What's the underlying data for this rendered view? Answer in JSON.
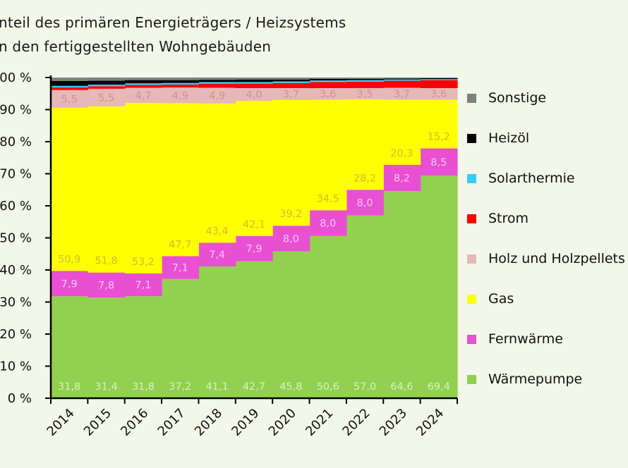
{
  "chart_data": {
    "type": "bar",
    "stacked": true,
    "title_lines": [
      "nteil des primären Energieträgers  / Heizsystems",
      "n den fertiggestellten  Wohngebäuden"
    ],
    "categories": [
      "2014",
      "2015",
      "2016",
      "2017",
      "2018",
      "2019",
      "2020",
      "2021",
      "2022",
      "2023",
      "2024"
    ],
    "ylim": [
      0,
      100
    ],
    "yticks": [
      "0 %",
      "10 %",
      "20 %",
      "30 %",
      "40 %",
      "50 %",
      "60 %",
      "70 %",
      "80 %",
      "90 %",
      "100 %"
    ],
    "legend_position": "right",
    "series": [
      {
        "name": "Wärmepumpe",
        "color": "#92d050",
        "label_color": "#d8efc6",
        "labeled": true,
        "values": [
          31.8,
          31.4,
          31.8,
          37.2,
          41.1,
          42.7,
          45.8,
          50.6,
          57.0,
          64.6,
          69.4
        ],
        "labels": [
          "31,8",
          "31,4",
          "31,8",
          "37,2",
          "41,1",
          "42,7",
          "45,8",
          "50,6",
          "57,0",
          "64,6",
          "69,4"
        ]
      },
      {
        "name": "Fernwärme",
        "color": "#e84fd2",
        "label_color": "#f7c6f0",
        "labeled": true,
        "values": [
          7.9,
          7.8,
          7.1,
          7.1,
          7.4,
          7.9,
          8.0,
          8.0,
          8.0,
          8.2,
          8.5
        ],
        "labels": [
          "7,9",
          "7,8",
          "7,1",
          "7,1",
          "7,4",
          "7,9",
          "8,0",
          "8,0",
          "8,0",
          "8,2",
          "8,5"
        ]
      },
      {
        "name": "Gas",
        "color": "#ffff00",
        "label_color": "#c8c032",
        "labeled": true,
        "values": [
          50.9,
          51.8,
          53.2,
          47.7,
          43.4,
          42.1,
          39.2,
          34.5,
          28.2,
          20.3,
          15.2
        ],
        "labels": [
          "50,9",
          "51,8",
          "53,2",
          "47,7",
          "43,4",
          "42,1",
          "39,2",
          "34,5",
          "28,2",
          "20,3",
          "15,2"
        ]
      },
      {
        "name": "Holz und Holzpellets",
        "color": "#e6b8b7",
        "label_color": "#d49090",
        "labeled": true,
        "values": [
          5.5,
          5.5,
          4.7,
          4.9,
          4.9,
          4.0,
          3.7,
          3.6,
          3.5,
          3.7,
          3.6
        ],
        "labels": [
          "5,5",
          "5,5",
          "4,7",
          "4,9",
          "4,9",
          "4,0",
          "3,7",
          "3,6",
          "3,5",
          "3,7",
          "3,6"
        ]
      },
      {
        "name": "Strom",
        "color": "#ff0000",
        "labeled": false,
        "values": [
          0.8,
          0.8,
          0.9,
          0.9,
          1.3,
          1.4,
          1.6,
          1.9,
          2.0,
          2.2,
          2.5
        ]
      },
      {
        "name": "Solarthermie",
        "color": "#33ccff",
        "labeled": false,
        "values": [
          0.5,
          0.5,
          0.5,
          0.5,
          0.5,
          0.5,
          0.5,
          0.5,
          0.5,
          0.4,
          0.3
        ]
      },
      {
        "name": "Heizöl",
        "color": "#000000",
        "labeled": false,
        "values": [
          1.5,
          1.2,
          1.0,
          0.9,
          0.7,
          0.8,
          0.6,
          0.5,
          0.4,
          0.3,
          0.3
        ]
      },
      {
        "name": "Sonstige",
        "color": "#808080",
        "labeled": false,
        "values": [
          1.1,
          1.0,
          0.8,
          0.8,
          0.7,
          0.6,
          0.6,
          0.4,
          0.4,
          0.3,
          0.2
        ]
      }
    ]
  }
}
